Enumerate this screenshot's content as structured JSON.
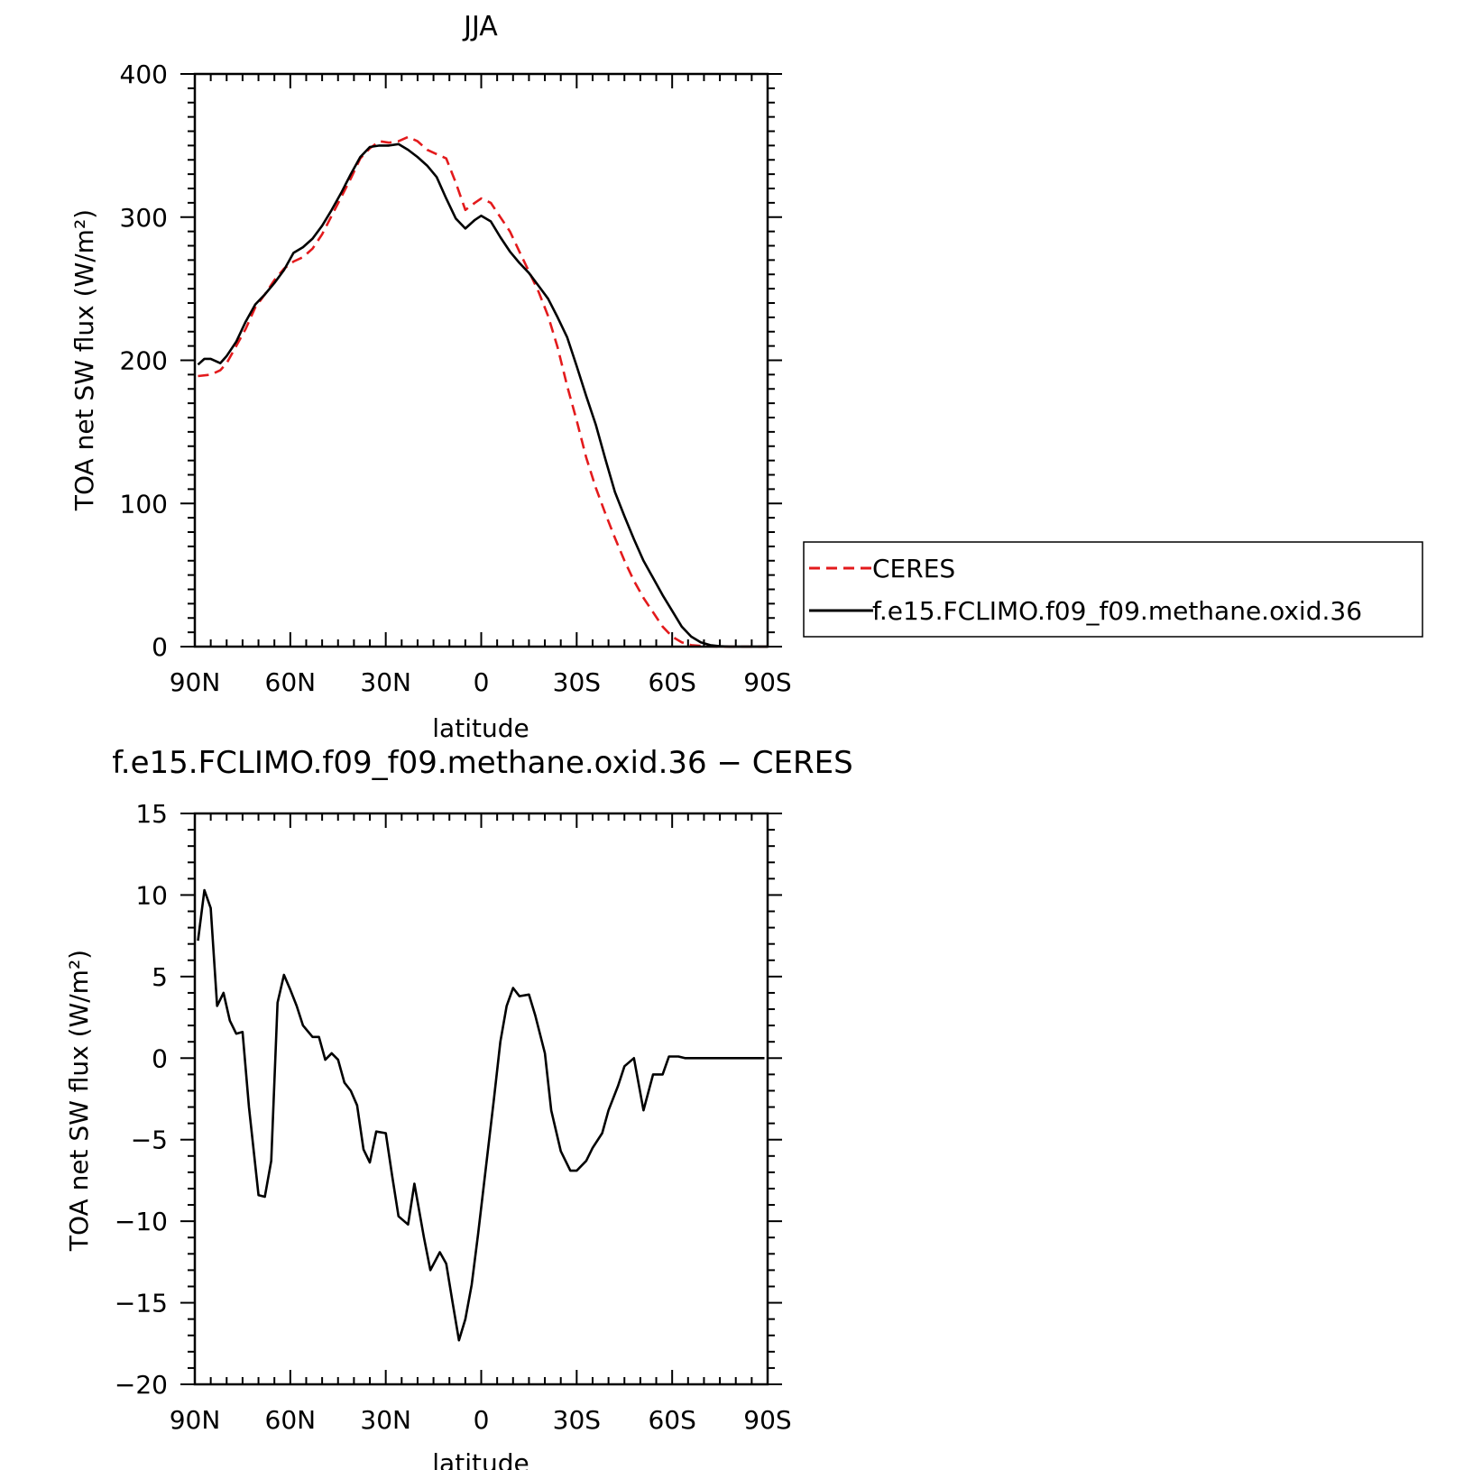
{
  "chart_data": [
    {
      "type": "line",
      "title": "JJA",
      "xlabel": "latitude",
      "ylabel": "TOA net SW flux (W/m²)",
      "xlim": [
        90,
        -90
      ],
      "ylim": [
        0,
        400
      ],
      "x_ticks": [
        90,
        60,
        30,
        0,
        -30,
        -60,
        -90
      ],
      "x_tick_labels": [
        "90N",
        "60N",
        "30N",
        "0",
        "30S",
        "60S",
        "90S"
      ],
      "y_ticks": [
        0,
        100,
        200,
        300,
        400
      ],
      "y_tick_labels": [
        "0",
        "100",
        "200",
        "300",
        "400"
      ],
      "legend_position": "right",
      "series": [
        {
          "name": "CERES",
          "color": "#e31a1c",
          "style": "dashed",
          "x": [
            89,
            85,
            82,
            80,
            77,
            74,
            71,
            68,
            65,
            62,
            59,
            56,
            53,
            50,
            47,
            44,
            41,
            38,
            35,
            32,
            29,
            26,
            23,
            20,
            17,
            14,
            11,
            8,
            5,
            2,
            0,
            -3,
            -6,
            -9,
            -12,
            -15,
            -18,
            -21,
            -24,
            -27,
            -30,
            -33,
            -36,
            -39,
            -42,
            -45,
            -48,
            -51,
            -54,
            -57,
            -60,
            -63,
            -66,
            -69,
            -72,
            -75,
            -78,
            -81,
            -84,
            -87,
            -90
          ],
          "values": [
            189,
            190,
            193,
            198,
            210,
            222,
            237,
            246,
            256,
            264,
            269,
            272,
            278,
            288,
            301,
            314,
            327,
            341,
            348,
            353,
            352,
            353,
            356,
            353,
            347,
            344,
            341,
            324,
            305,
            310,
            313,
            310,
            300,
            290,
            276,
            262,
            248,
            231,
            209,
            182,
            158,
            132,
            111,
            93,
            76,
            60,
            46,
            34,
            24,
            14,
            7,
            3,
            1,
            0.5,
            0.2,
            0,
            0,
            0,
            0,
            0,
            0
          ]
        },
        {
          "name": "f.e15.FCLIMO.f09_f09.methane.oxid.36",
          "color": "#000000",
          "style": "solid",
          "x": [
            89,
            87,
            85,
            82,
            80,
            77,
            74,
            71,
            68,
            65,
            62,
            59,
            56,
            53,
            50,
            47,
            44,
            41,
            38,
            35,
            32,
            29,
            26,
            23,
            20,
            17,
            14,
            11,
            8,
            5,
            2,
            0,
            -3,
            -6,
            -9,
            -12,
            -15,
            -18,
            -21,
            -24,
            -27,
            -30,
            -33,
            -36,
            -39,
            -42,
            -45,
            -48,
            -51,
            -54,
            -57,
            -60,
            -63,
            -66,
            -69,
            -72,
            -75,
            -78,
            -81,
            -84,
            -87,
            -90
          ],
          "values": [
            197,
            201,
            201,
            198,
            203,
            213,
            227,
            239,
            246,
            254,
            263,
            275,
            279,
            285,
            294,
            305,
            317,
            330,
            342,
            349,
            350,
            350,
            351,
            347,
            342,
            336,
            328,
            313,
            299,
            292,
            298,
            301,
            297,
            286,
            276,
            268,
            261,
            252,
            243,
            230,
            216,
            196,
            175,
            155,
            131,
            108,
            91,
            75,
            60,
            48,
            36,
            25,
            14,
            7,
            3,
            1,
            0.3,
            0,
            0,
            0,
            0,
            0
          ]
        }
      ]
    },
    {
      "type": "line",
      "title": "f.e15.FCLIMO.f09_f09.methane.oxid.36 − CERES",
      "xlabel": "latitude",
      "ylabel": "TOA net SW flux (W/m²)",
      "xlim": [
        90,
        -90
      ],
      "ylim": [
        -20,
        15
      ],
      "x_ticks": [
        90,
        60,
        30,
        0,
        -30,
        -60,
        -90
      ],
      "x_tick_labels": [
        "90N",
        "60N",
        "30N",
        "0",
        "30S",
        "60S",
        "90S"
      ],
      "y_ticks": [
        -20,
        -15,
        -10,
        -5,
        0,
        5,
        10,
        15
      ],
      "y_tick_labels": [
        "−20",
        "−15",
        "−10",
        "−5",
        "0",
        "5",
        "10",
        "15"
      ],
      "series": [
        {
          "color": "#000000",
          "style": "solid",
          "x": [
            89,
            87,
            85,
            83,
            81,
            79,
            77,
            75,
            73,
            70,
            68,
            66,
            64,
            62,
            60,
            58,
            56,
            53,
            51,
            49,
            47,
            45,
            43,
            41,
            39,
            37,
            35,
            33,
            30,
            28,
            26,
            23,
            21,
            18,
            16,
            13,
            11,
            9,
            7,
            5,
            3,
            1,
            -2,
            -4,
            -6,
            -8,
            -10,
            -12,
            -15,
            -17,
            -20,
            -22,
            -25,
            -28,
            -30,
            -33,
            -35,
            -38,
            -40,
            -43,
            -45,
            -48,
            -51,
            -54,
            -57,
            -59,
            -62,
            -64,
            -66,
            -69,
            -71,
            -74,
            -77,
            -80,
            -82,
            -85,
            -87,
            -89
          ],
          "values": [
            7.2,
            10.3,
            9.2,
            3.2,
            4.0,
            2.3,
            1.5,
            1.6,
            -3.0,
            -8.4,
            -8.5,
            -6.3,
            3.4,
            5.1,
            4.2,
            3.2,
            2.0,
            1.3,
            1.3,
            -0.1,
            0.3,
            -0.1,
            -1.5,
            -2.0,
            -2.9,
            -5.6,
            -6.4,
            -4.5,
            -4.6,
            -7.2,
            -9.7,
            -10.2,
            -7.7,
            -11.0,
            -13.0,
            -11.9,
            -12.6,
            -15.0,
            -17.3,
            -16.0,
            -13.9,
            -10.8,
            -5.8,
            -2.5,
            1.0,
            3.2,
            4.3,
            3.8,
            3.9,
            2.6,
            0.3,
            -3.2,
            -5.7,
            -6.9,
            -6.9,
            -6.3,
            -5.5,
            -4.6,
            -3.2,
            -1.7,
            -0.5,
            0.0,
            -3.2,
            -1.0,
            -1.0,
            0.1,
            0.1,
            0.0,
            0.0,
            0.0,
            0.0,
            0.0,
            0.0,
            0.0,
            0.0,
            0.0,
            0.0,
            0.0
          ]
        }
      ]
    }
  ]
}
